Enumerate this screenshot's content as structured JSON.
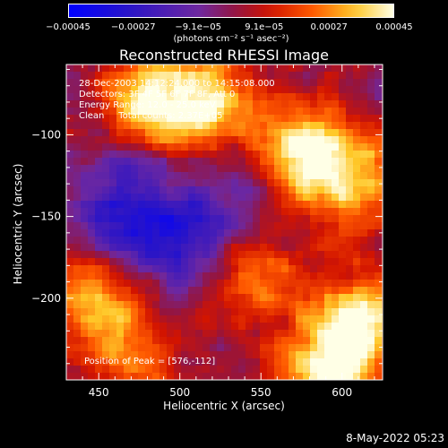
{
  "chart_data": {
    "type": "heatmap",
    "title": "Reconstructed RHESSI Image",
    "xlabel": "Heliocentric X (arcsec)",
    "ylabel": "Heliocentric Y (arcsec)",
    "xlim": [
      430,
      625
    ],
    "ylim": [
      -250,
      -57
    ],
    "x_ticks": [
      450,
      500,
      550,
      600
    ],
    "x_tick_labels": [
      "450",
      "500",
      "550",
      "600"
    ],
    "y_ticks": [
      -100,
      -150,
      -200
    ],
    "y_tick_labels": [
      "−100",
      "−150",
      "−200"
    ],
    "colorbar": {
      "tick_values": [
        -0.00045,
        -0.00027,
        -9.1e-05,
        9.1e-05,
        0.00027,
        0.00045
      ],
      "tick_labels": [
        "−0.00045",
        "−0.00027",
        "−9.1e−05",
        "9.1e−05",
        "0.00027",
        "0.00045"
      ],
      "unit_label": "(photons cm⁻² s⁻¹ asec⁻²)",
      "range": [
        -0.00045,
        0.00045
      ],
      "colormap": "blue-purple-red-yellow-white"
    },
    "annotations": {
      "time_range": "28-Dec-2003 14:12:24.000 to 14:15:08.000",
      "detectors": "Detectors: 3F 4F 5F 6F 7F 8F, Att 0",
      "energy": "Energy Range: 12.0 - 25.0 keV",
      "clean": "Clean     Total counts: 2.37E+05",
      "peak": "Position of Peak = [576,-112]"
    },
    "peak_position": [
      576,
      -112
    ],
    "bright_regions": [
      {
        "x": 576,
        "y": -112,
        "intensity": 0.00045
      },
      {
        "x": 480,
        "y": -80,
        "intensity": 0.0004
      },
      {
        "x": 610,
        "y": -215,
        "intensity": 0.00042
      },
      {
        "x": 590,
        "y": -245,
        "intensity": 0.0004
      },
      {
        "x": 446,
        "y": -200,
        "intensity": 0.0003
      },
      {
        "x": 518,
        "y": -80,
        "intensity": 0.00035
      },
      {
        "x": 610,
        "y": -130,
        "intensity": 0.0003
      },
      {
        "x": 545,
        "y": -185,
        "intensity": 0.00025
      },
      {
        "x": 470,
        "y": -235,
        "intensity": 0.0002
      }
    ],
    "dim_regions": [
      {
        "x": 500,
        "y": -165,
        "intensity": -0.0003
      },
      {
        "x": 460,
        "y": -150,
        "intensity": -0.0002
      },
      {
        "x": 540,
        "y": -140,
        "intensity": -0.00015
      },
      {
        "x": 470,
        "y": -120,
        "intensity": -0.0001
      }
    ]
  },
  "footer": {
    "timestamp": "8-May-2022 05:23"
  }
}
